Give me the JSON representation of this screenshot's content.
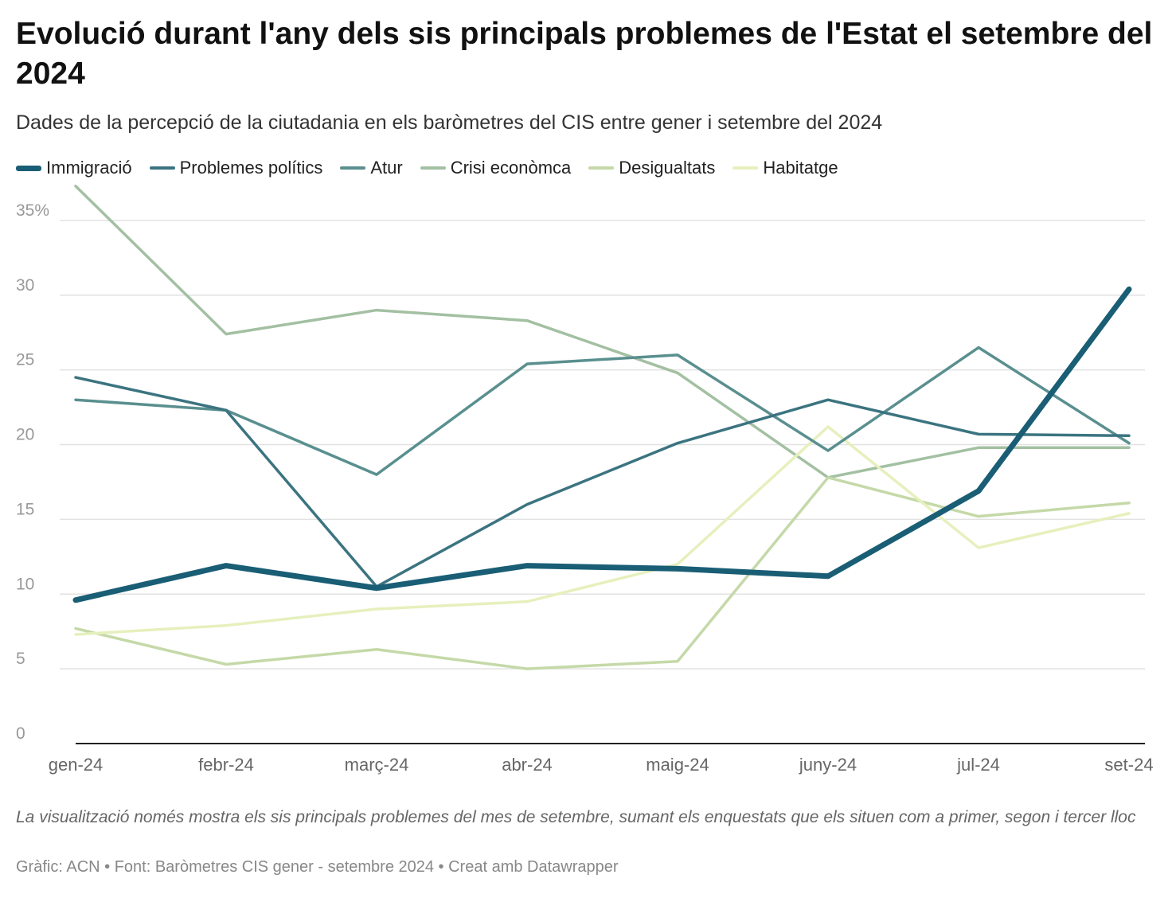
{
  "title": "Evolució durant l'any dels sis principals problemes de l'Estat el setembre del 2024",
  "subtitle": "Dades de la percepció de la ciutadania en els baròmetres del CIS entre gener i setembre del 2024",
  "notes": "La visualització només mostra els sis principals problemes del mes de setembre, sumant els enquestats que els situen com a primer, segon i tercer lloc",
  "footer": "Gràfic: ACN • Font: Baròmetres CIS gener - setembre 2024 • Creat amb Datawrapper",
  "chart_data": {
    "type": "line",
    "title": "Evolució durant l'any dels sis principals problemes de l'Estat el setembre del 2024",
    "xlabel": "",
    "ylabel": "",
    "ylim": [
      0,
      37.5
    ],
    "y_ticks": [
      {
        "value": 0,
        "label": "0"
      },
      {
        "value": 5,
        "label": "5"
      },
      {
        "value": 10,
        "label": "10"
      },
      {
        "value": 15,
        "label": "15"
      },
      {
        "value": 20,
        "label": "20"
      },
      {
        "value": 25,
        "label": "25"
      },
      {
        "value": 30,
        "label": "30"
      },
      {
        "value": 35,
        "label": "35%"
      }
    ],
    "grid": true,
    "legend_position": "top-left",
    "categories": [
      "gen-24",
      "febr-24",
      "març-24",
      "abr-24",
      "maig-24",
      "juny-24",
      "jul-24",
      "set-24"
    ],
    "series": [
      {
        "name": "Crisi econòmca",
        "color": "#a3c0a2",
        "values": [
          37.3,
          27.4,
          29.0,
          28.3,
          24.8,
          17.8,
          19.8,
          19.8
        ]
      },
      {
        "name": "Desigualtats",
        "color": "#c5d9a8",
        "values": [
          7.7,
          5.3,
          6.3,
          5.0,
          5.5,
          17.8,
          15.2,
          16.1
        ]
      },
      {
        "name": "Habitatge",
        "color": "#e6f0bd",
        "values": [
          7.3,
          7.9,
          9.0,
          9.5,
          12.0,
          21.2,
          13.1,
          15.4
        ]
      },
      {
        "name": "Atur",
        "color": "#5a8f8f",
        "values": [
          23.0,
          22.3,
          18.0,
          25.4,
          26.0,
          19.6,
          26.5,
          20.1
        ]
      },
      {
        "name": "Problemes polítics",
        "color": "#3b7480",
        "values": [
          24.5,
          22.3,
          10.5,
          16.0,
          20.1,
          23.0,
          20.7,
          20.6
        ]
      },
      {
        "name": "Immigració",
        "color": "#195e75",
        "values": [
          9.6,
          11.9,
          10.4,
          11.9,
          11.7,
          11.2,
          16.9,
          30.4
        ]
      }
    ],
    "legend_order": [
      "Immigració",
      "Problemes polítics",
      "Atur",
      "Crisi econòmca",
      "Desigualtats",
      "Habitatge"
    ]
  }
}
